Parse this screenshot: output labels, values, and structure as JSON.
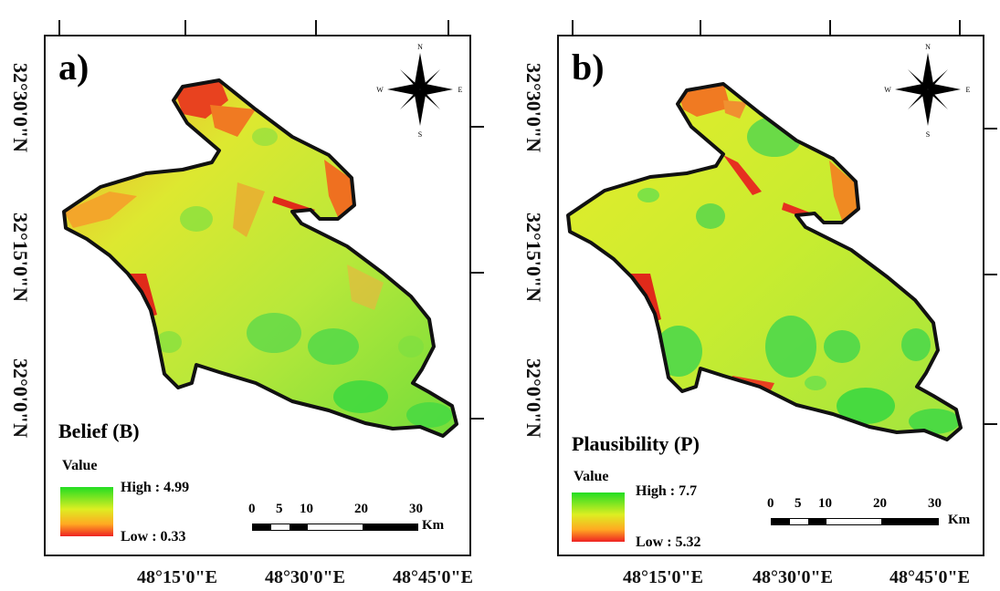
{
  "panels": {
    "a": {
      "letter": "a)",
      "title": "Belief (B)",
      "legend_label": "Value",
      "high": "High : 4.99",
      "low": "Low : 0.33"
    },
    "b": {
      "letter": "b)",
      "title": "Plausibility (P)",
      "legend_label": "Value",
      "high": "High : 7.7",
      "low": "Low : 5.32"
    }
  },
  "lat_labels": [
    "32°30'0\"N",
    "32°15'0\"N",
    "32°0'0\"N"
  ],
  "lon_labels": [
    "48°15'0\"E",
    "48°30'0\"E",
    "48°45'0\"E"
  ],
  "scale": {
    "ticks": [
      "0",
      "5",
      "10",
      "20",
      "30"
    ],
    "unit": "Km"
  },
  "compass": {
    "n": "N",
    "s": "S",
    "e": "E",
    "w": "W"
  },
  "colors": {
    "high": "#22dd22",
    "mid": "#ddee22",
    "low_mid": "#ffaa22",
    "low": "#ee2222",
    "outline": "#111111"
  }
}
